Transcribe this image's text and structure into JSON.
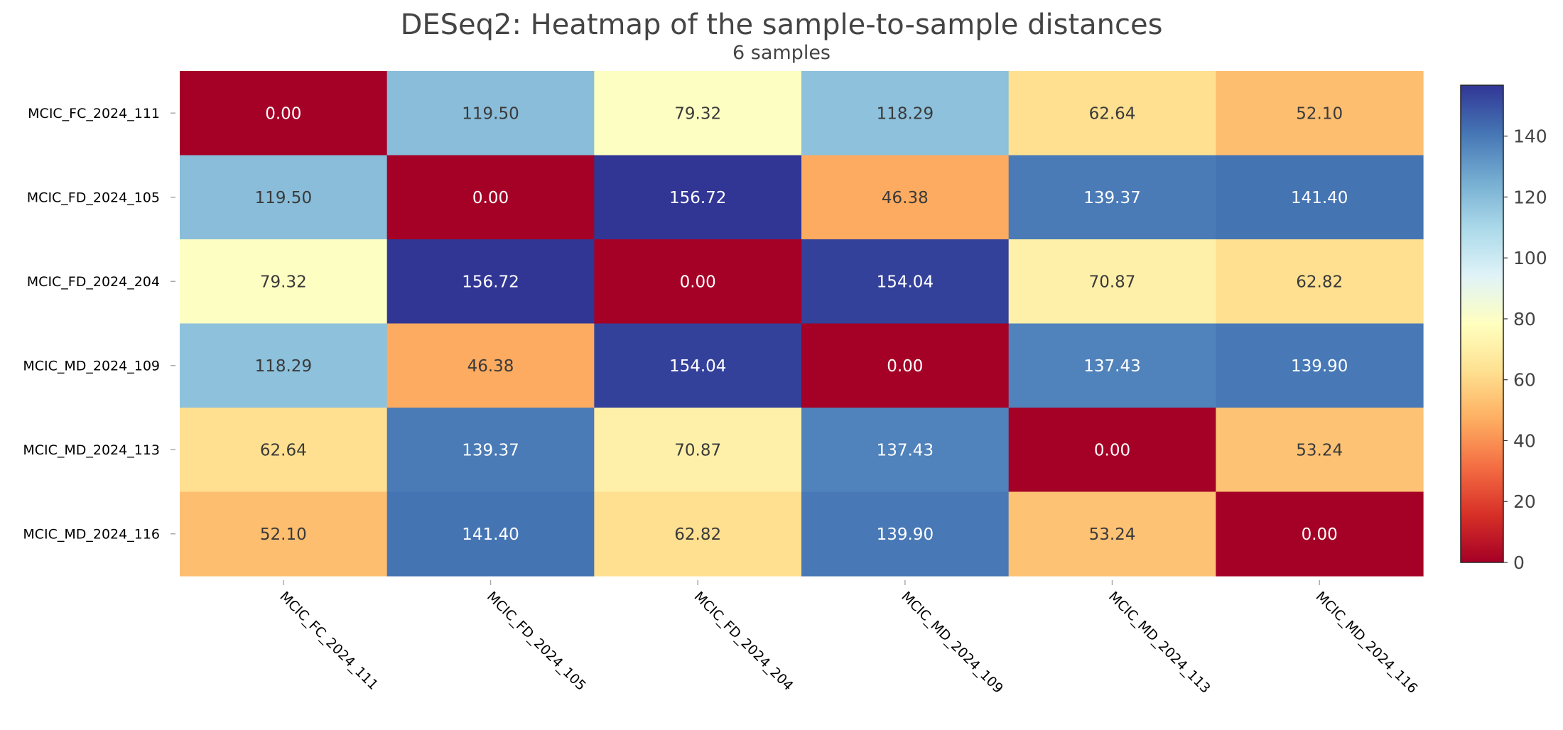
{
  "chart_data": {
    "type": "heatmap",
    "title": "DESeq2: Heatmap of the sample-to-sample distances",
    "subtitle": "6 samples",
    "row_labels": [
      "MCIC_FC_2024_111",
      "MCIC_FD_2024_105",
      "MCIC_FD_2024_204",
      "MCIC_MD_2024_109",
      "MCIC_MD_2024_113",
      "MCIC_MD_2024_116"
    ],
    "col_labels": [
      "MCIC_FC_2024_111",
      "MCIC_FD_2024_105",
      "MCIC_FD_2024_204",
      "MCIC_MD_2024_109",
      "MCIC_MD_2024_113",
      "MCIC_MD_2024_116"
    ],
    "values": [
      [
        0.0,
        119.5,
        79.32,
        118.29,
        62.64,
        52.1
      ],
      [
        119.5,
        0.0,
        156.72,
        46.38,
        139.37,
        141.4
      ],
      [
        79.32,
        156.72,
        0.0,
        154.04,
        70.87,
        62.82
      ],
      [
        118.29,
        46.38,
        154.04,
        0.0,
        137.43,
        139.9
      ],
      [
        62.64,
        139.37,
        70.87,
        137.43,
        0.0,
        53.24
      ],
      [
        52.1,
        141.4,
        62.82,
        139.9,
        53.24,
        0.0
      ]
    ],
    "colorbar": {
      "colormap": "RdYlBu",
      "range": [
        0,
        156.72
      ],
      "ticks": [
        0,
        20,
        40,
        60,
        80,
        100,
        120,
        140
      ]
    },
    "grid": false,
    "legend": "colorbar-right"
  },
  "colors": {
    "title_text": "#444444",
    "label_text": "#000000",
    "tick_mark": "#aaaaaa",
    "cell_text_dark": "#3a3a3a",
    "cell_text_light": "#ffffff"
  }
}
